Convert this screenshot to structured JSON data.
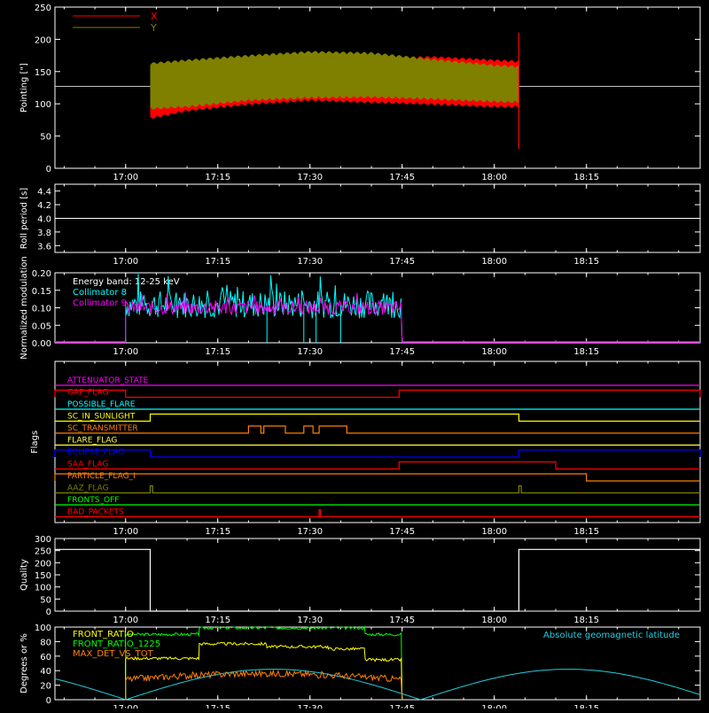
{
  "time_axis": {
    "ticks": [
      "17:00",
      "17:15",
      "17:30",
      "17:45",
      "18:00",
      "18:15"
    ],
    "tick_minutes": [
      -1.5,
      13.5,
      28.5,
      43.5,
      58.5,
      73.5
    ],
    "range_minutes": [
      -13,
      92
    ],
    "unit_note": "minutes after 17:01:30 reference; ticks at 17:00 .. 18:15"
  },
  "chart_data": [
    {
      "type": "area",
      "ylabel": "Pointing [\"]",
      "ylim": [
        0,
        250
      ],
      "yticks": [
        "0",
        "50",
        "100",
        "150",
        "200",
        "250"
      ],
      "ytick_values": [
        0,
        50,
        100,
        150,
        200,
        250
      ],
      "reference_line": 127,
      "series": [
        {
          "name": "X",
          "color": "#ff0000",
          "start": "17:04",
          "end": "18:04",
          "upper": [
            [
              17.04,
              150
            ],
            [
              17.1,
              143
            ],
            [
              17.2,
              150
            ],
            [
              17.3,
              162
            ],
            [
              17.4,
              168
            ],
            [
              17.5,
              170
            ],
            [
              17.6,
              165
            ],
            [
              17.7,
              160
            ],
            [
              17.8,
              159
            ],
            [
              17.9,
              158
            ],
            [
              18.0,
              158
            ],
            [
              18.04,
              158
            ]
          ],
          "lower": [
            [
              17.04,
              80
            ],
            [
              17.1,
              92
            ],
            [
              17.2,
              102
            ],
            [
              17.3,
              108
            ],
            [
              17.4,
              105
            ],
            [
              17.5,
              102
            ],
            [
              17.6,
              98
            ],
            [
              17.7,
              98
            ],
            [
              17.8,
              97
            ],
            [
              17.9,
              96
            ],
            [
              18.0,
              96
            ],
            [
              18.04,
              96
            ]
          ]
        },
        {
          "name": "Y",
          "color": "#808000",
          "start": "17:04",
          "end": "18:04",
          "upper": [
            [
              17.04,
              160
            ],
            [
              17.1,
              165
            ],
            [
              17.2,
              172
            ],
            [
              17.3,
              178
            ],
            [
              17.4,
              176
            ],
            [
              17.5,
              166
            ],
            [
              17.6,
              157
            ],
            [
              17.7,
              152
            ],
            [
              17.8,
              150
            ],
            [
              17.9,
              150
            ],
            [
              18.0,
              149
            ],
            [
              18.04,
              148
            ]
          ],
          "lower": [
            [
              17.04,
              95
            ],
            [
              17.1,
              98
            ],
            [
              17.2,
              108
            ],
            [
              17.3,
              112
            ],
            [
              17.4,
              113
            ],
            [
              17.5,
              110
            ],
            [
              17.6,
              106
            ],
            [
              17.7,
              104
            ],
            [
              17.8,
              103
            ],
            [
              17.9,
              103
            ],
            [
              18.0,
              103
            ],
            [
              18.04,
              103
            ]
          ]
        }
      ],
      "end_spike": {
        "time": "18:04",
        "max": 210,
        "min": 30
      }
    },
    {
      "type": "line",
      "ylabel": "Roll period [s]",
      "ylim": [
        3.5,
        4.5
      ],
      "yticks": [
        "3.6",
        "3.8",
        "4.0",
        "4.2",
        "4.4"
      ],
      "ytick_values": [
        3.6,
        3.8,
        4.0,
        4.2,
        4.4
      ],
      "series": [
        {
          "name": "",
          "color": "#ffffff",
          "value": 4.0
        }
      ]
    },
    {
      "type": "line",
      "ylabel": "Normalized modulation",
      "ylim": [
        0,
        0.2
      ],
      "yticks": [
        "0.00",
        "0.05",
        "0.10",
        "0.15",
        "0.20"
      ],
      "ytick_values": [
        0.0,
        0.05,
        0.1,
        0.15,
        0.2
      ],
      "annotation": "Energy band: 12-25 keV",
      "series": [
        {
          "name": "Collimator 8",
          "color": "#00ffff",
          "start": "17:00",
          "end": "17:45",
          "mean": 0.11,
          "spread": 0.04,
          "dropouts": [
            "17:23",
            "17:29",
            "17:31",
            "17:35"
          ]
        },
        {
          "name": "Collimator 9",
          "color": "#ff00ff",
          "start": "17:00",
          "end": "17:45",
          "mean": 0.1,
          "spread": 0.02
        }
      ]
    },
    {
      "type": "line",
      "ylabel": "Flags",
      "series": [
        {
          "name": "ATTENUATOR_STATE",
          "color": "#ff00ff",
          "segments": []
        },
        {
          "name": "GAP_FLAG",
          "color": "#ff0000",
          "segments": [
            [
              "17:00",
              "17:44.5"
            ]
          ],
          "invert": true
        },
        {
          "name": "POSSIBLE_FLARE",
          "color": "#00ffff",
          "segments": []
        },
        {
          "name": "SC_IN_SUNLIGHT",
          "color": "#ffff00",
          "segments": [
            [
              "17:04",
              "18:04"
            ]
          ]
        },
        {
          "name": "SC_TRANSMITTER",
          "color": "#ff8000",
          "segments": [
            [
              "17:20",
              "17:22"
            ],
            [
              "17:22.5",
              "17:26"
            ],
            [
              "17:29",
              "17:30.5"
            ],
            [
              "17:31.5",
              "17:36"
            ]
          ]
        },
        {
          "name": "FLARE_FLAG",
          "color": "#ffff40",
          "segments": []
        },
        {
          "name": "ECLIPSE_FLAG",
          "color": "#0000ff",
          "segments": [
            [
              "-",
              "17:04"
            ],
            [
              "18:04",
              "-"
            ]
          ]
        },
        {
          "name": "SAA_FLAG",
          "color": "#ff0000",
          "segments": [
            [
              "17:44.5",
              "18:10"
            ]
          ]
        },
        {
          "name": "PARTICLE_FLAG_I",
          "color": "#ff8000",
          "segments": [
            [
              "-",
              "18:15"
            ]
          ]
        },
        {
          "name": "AAZ_FLAG",
          "color": "#808000",
          "segments": [
            [
              "17:04",
              "17:04.4"
            ],
            [
              "18:04",
              "18:04.4"
            ]
          ]
        },
        {
          "name": "FRONTS_OFF",
          "color": "#00ff00",
          "segments": []
        },
        {
          "name": "BAD_PACKETS",
          "color": "#ff0000",
          "segments": [
            [
              "17:31.5",
              "17:31.7"
            ]
          ]
        }
      ]
    },
    {
      "type": "line",
      "ylabel": "Quality",
      "ylim": [
        0,
        300
      ],
      "yticks": [
        "0",
        "50",
        "100",
        "150",
        "200",
        "250",
        "300"
      ],
      "ytick_values": [
        0,
        50,
        100,
        150,
        200,
        250,
        300
      ],
      "series": [
        {
          "name": "",
          "color": "#ffffff",
          "high": 255,
          "low": 0,
          "low_interval": [
            "17:04",
            "18:04"
          ]
        }
      ]
    },
    {
      "type": "line",
      "ylabel": "Degrees or %",
      "ylim": [
        0,
        100
      ],
      "yticks": [
        "0",
        "20",
        "40",
        "60",
        "80",
        "100"
      ],
      "ytick_values": [
        0,
        20,
        40,
        60,
        80,
        100
      ],
      "series": [
        {
          "name": "FRONT_RATIO",
          "color": "#ffff00",
          "segments": [
            [
              -13,
              43.5,
              null
            ]
          ],
          "levels": [
            [
              -1.5,
              10.5,
              57
            ],
            [
              10.5,
              21.5,
              77
            ],
            [
              21.5,
              31.5,
              73
            ],
            [
              31.5,
              37.5,
              70
            ],
            [
              37.5,
              43.5,
              55
            ]
          ]
        },
        {
          "name": "FRONT_RATIO_1225",
          "color": "#00ff00",
          "levels": [
            [
              -1.5,
              10.5,
              90
            ],
            [
              10.5,
              37.5,
              99
            ],
            [
              37.5,
              43.5,
              90
            ]
          ]
        },
        {
          "name": "MAX_DET_VS_TOT",
          "color": "#ff8000",
          "levels": [
            [
              -1.5,
              43.5,
              28
            ]
          ]
        },
        {
          "name": "Absolute geomagnetic latitude",
          "color": "#20d0e0",
          "period_minutes": 96,
          "amplitude": 42,
          "zero_at_minutes": [
            -1.5,
            46.5
          ]
        }
      ]
    }
  ]
}
